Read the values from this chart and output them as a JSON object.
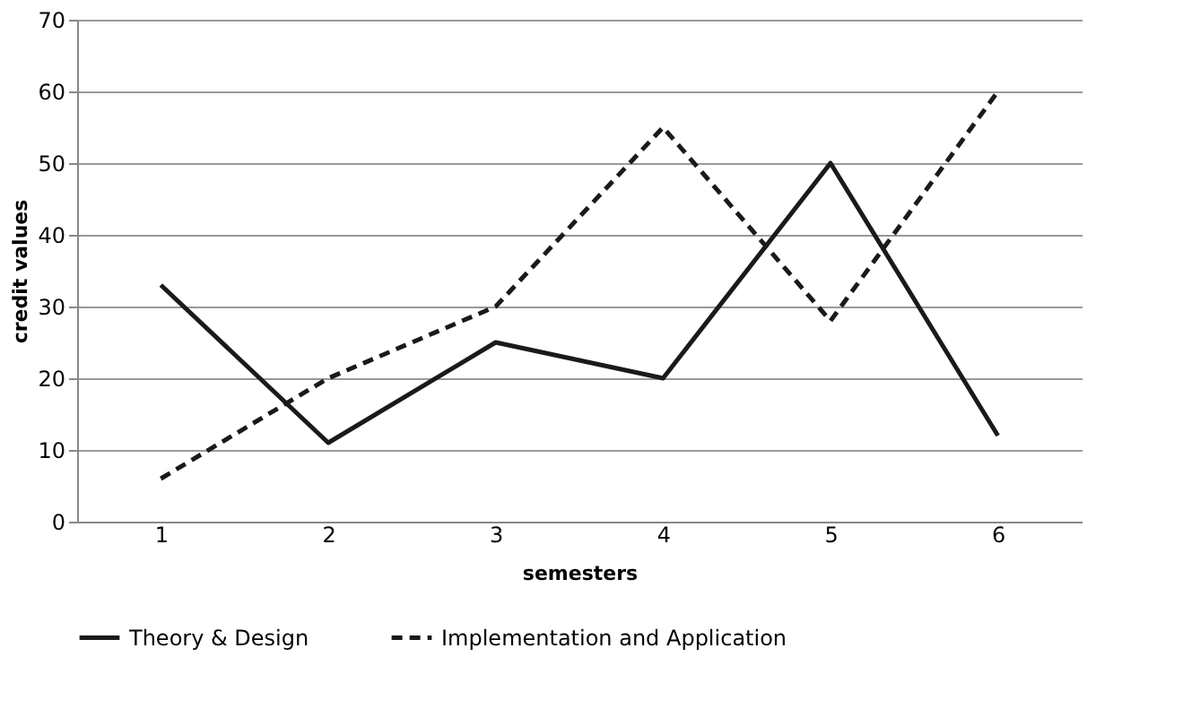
{
  "chart_data": {
    "type": "line",
    "xlabel": "semesters",
    "ylabel": "credit values",
    "categories": [
      "1",
      "2",
      "3",
      "4",
      "5",
      "6"
    ],
    "series": [
      {
        "name": "Theory & Design",
        "color": "#1a1a1a",
        "line_style": "solid",
        "values": [
          33,
          11,
          25,
          20,
          50,
          12
        ]
      },
      {
        "name": "Implementation and Application",
        "color": "#1a1a1a",
        "line_style": "dashed",
        "values": [
          6,
          20,
          30,
          55,
          28,
          60
        ]
      }
    ],
    "ylim": [
      0,
      70
    ],
    "yticks": [
      0,
      10,
      20,
      30,
      40,
      50,
      60,
      70
    ],
    "grid": "y",
    "legend": "bottom",
    "marker": "none"
  }
}
